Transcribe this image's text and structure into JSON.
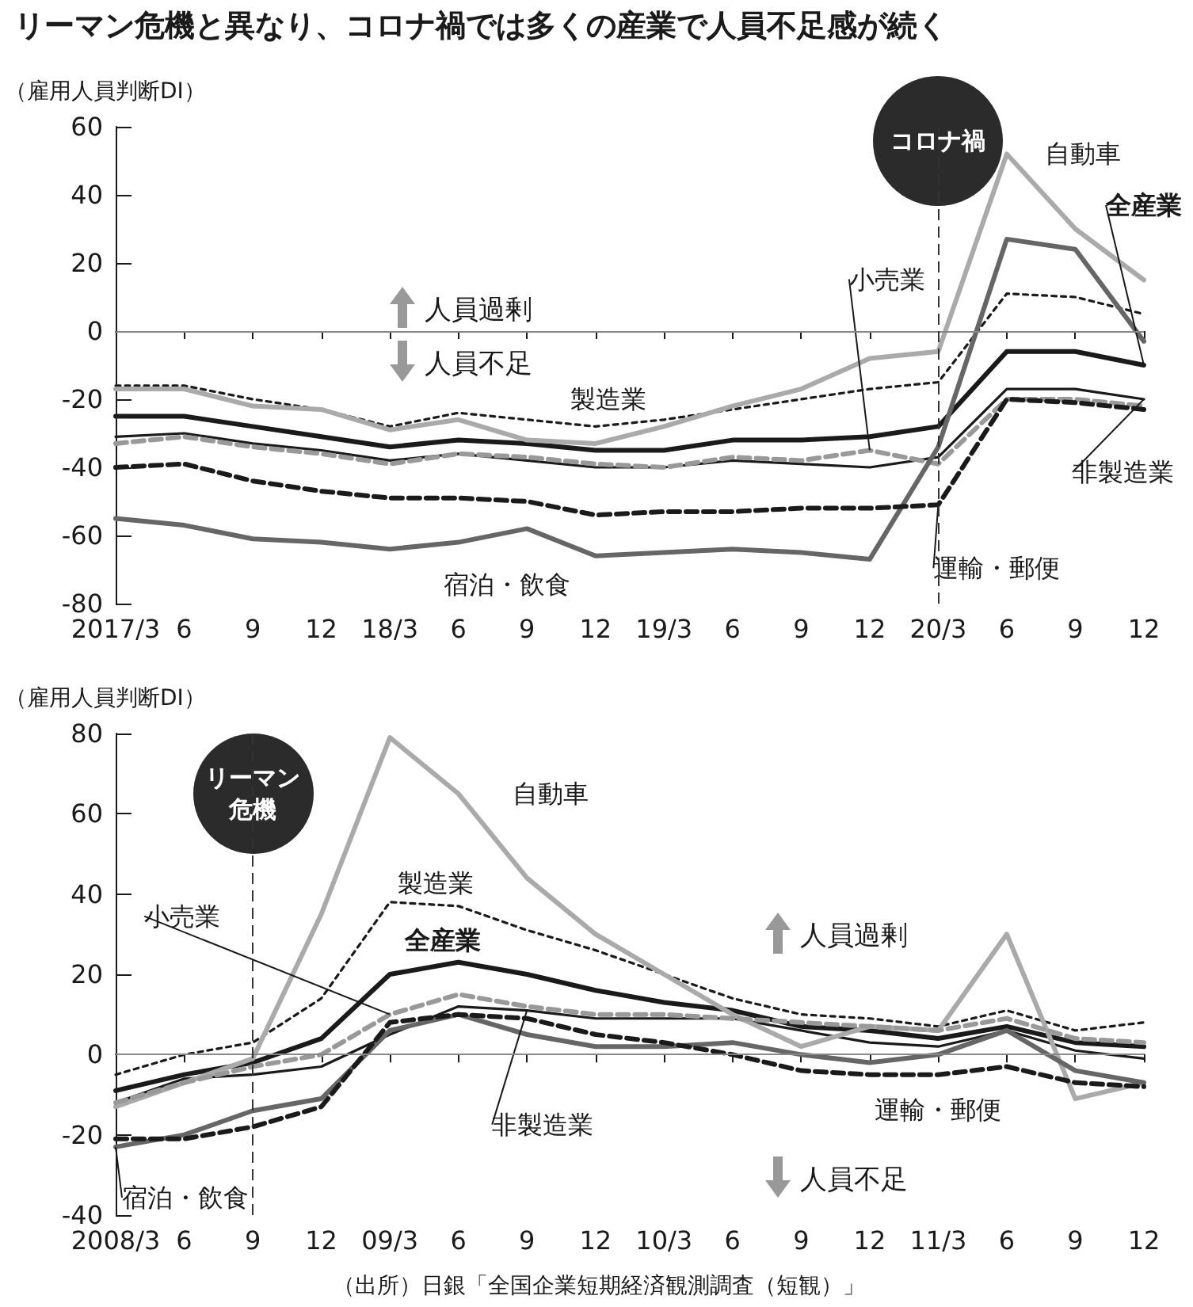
{
  "chart_data": [
    {
      "type": "line",
      "title": "リーマン危機と異なり、コロナ禍では多くの産業で人員不足感が続く",
      "ylabel": "（雇用人員判断DI）",
      "categories": [
        "2017/3",
        "6",
        "9",
        "12",
        "18/3",
        "6",
        "9",
        "12",
        "19/3",
        "6",
        "9",
        "12",
        "20/3",
        "6",
        "9",
        "12"
      ],
      "series": [
        {
          "name": "全産業",
          "color": "#1a1a1a",
          "line_style": "solid",
          "values": [
            -25,
            -25,
            -28,
            -31,
            -34,
            -32,
            -33,
            -35,
            -35,
            -32,
            -32,
            -31,
            -28,
            -6,
            -6,
            -10
          ]
        },
        {
          "name": "製造業",
          "color": "#1a1a1a",
          "line_style": "dotted",
          "values": [
            -16,
            -16,
            -20,
            -23,
            -28,
            -24,
            -26,
            -28,
            -26,
            -23,
            -20,
            -17,
            -15,
            11,
            10,
            5
          ]
        },
        {
          "name": "非製造業",
          "color": "#1a1a1a",
          "line_style": "solid",
          "values": [
            -31,
            -30,
            -33,
            -35,
            -38,
            -36,
            -38,
            -40,
            -40,
            -38,
            -39,
            -40,
            -37,
            -17,
            -17,
            -20
          ]
        },
        {
          "name": "自動車",
          "color": "#aaaaaa",
          "line_style": "solid",
          "values": [
            -17,
            -17,
            -22,
            -23,
            -29,
            -26,
            -32,
            -33,
            -28,
            -22,
            -17,
            -8,
            -6,
            52,
            30,
            15
          ]
        },
        {
          "name": "小売業",
          "color": "#999999",
          "line_style": "dashed",
          "values": [
            -33,
            -31,
            -34,
            -36,
            -39,
            -36,
            -37,
            -39,
            -40,
            -37,
            -38,
            -35,
            -39,
            -20,
            -20,
            -22
          ]
        },
        {
          "name": "宿泊・飲食",
          "color": "#666666",
          "line_style": "solid",
          "values": [
            -55,
            -57,
            -61,
            -62,
            -64,
            -62,
            -58,
            -66,
            -65,
            -64,
            -65,
            -67,
            -34,
            27,
            24,
            -3
          ]
        },
        {
          "name": "運輸・郵便",
          "color": "#1a1a1a",
          "line_style": "dashed",
          "values": [
            -40,
            -39,
            -44,
            -47,
            -49,
            -49,
            -50,
            -54,
            -53,
            -53,
            -52,
            -52,
            -51,
            -20,
            -21,
            -23
          ]
        }
      ],
      "ylim": [
        -80,
        60
      ],
      "yticks": [
        -80,
        -60,
        -40,
        -20,
        0,
        20,
        40,
        60
      ],
      "grid": false,
      "legend": false,
      "marker": "none",
      "ref_lines": [
        {
          "axis": "y",
          "value": 0,
          "label": null,
          "color": "#888888",
          "line_style": "solid"
        },
        {
          "axis": "x",
          "value": "20/3",
          "label": "コロナ禍",
          "color": "#333333",
          "line_style": "dashed"
        }
      ],
      "annotations": [
        "人員過剰",
        "人員不足"
      ]
    },
    {
      "type": "line",
      "ylabel": "（雇用人員判断DI）",
      "categories": [
        "2008/3",
        "6",
        "9",
        "12",
        "09/3",
        "6",
        "9",
        "12",
        "10/3",
        "6",
        "9",
        "12",
        "11/3",
        "6",
        "9",
        "12"
      ],
      "series": [
        {
          "name": "全産業",
          "color": "#1a1a1a",
          "line_style": "solid",
          "values": [
            -9,
            -5,
            -2,
            4,
            20,
            23,
            20,
            16,
            13,
            11,
            7,
            6,
            4,
            7,
            3,
            2
          ]
        },
        {
          "name": "製造業",
          "color": "#1a1a1a",
          "line_style": "dotted",
          "values": [
            -5,
            0,
            3,
            14,
            38,
            37,
            31,
            26,
            20,
            14,
            10,
            9,
            7,
            11,
            6,
            8
          ]
        },
        {
          "name": "非製造業",
          "color": "#1a1a1a",
          "line_style": "solid",
          "values": [
            -12,
            -6,
            -5,
            -3,
            5,
            12,
            11,
            9,
            9,
            9,
            6,
            3,
            2,
            6,
            1,
            -1
          ]
        },
        {
          "name": "自動車",
          "color": "#aaaaaa",
          "line_style": "solid",
          "values": [
            -13,
            -7,
            -1,
            35,
            79,
            65,
            44,
            30,
            20,
            10,
            2,
            7,
            6,
            30,
            -11,
            -7
          ]
        },
        {
          "name": "小売業",
          "color": "#999999",
          "line_style": "dashed",
          "values": [
            -12,
            -7,
            -3,
            0,
            10,
            15,
            12,
            10,
            10,
            9,
            8,
            7,
            6,
            9,
            4,
            3
          ]
        },
        {
          "name": "宿泊・飲食",
          "color": "#666666",
          "line_style": "solid",
          "values": [
            -23,
            -20,
            -14,
            -11,
            6,
            10,
            5,
            2,
            2,
            3,
            0,
            -2,
            0,
            6,
            -4,
            -7
          ]
        },
        {
          "name": "運輸・郵便",
          "color": "#1a1a1a",
          "line_style": "dashed",
          "values": [
            -21,
            -21,
            -18,
            -13,
            8,
            10,
            9,
            5,
            3,
            0,
            -4,
            -5,
            -5,
            -3,
            -7,
            -8
          ]
        }
      ],
      "ylim": [
        -40,
        80
      ],
      "yticks": [
        -40,
        -20,
        0,
        20,
        40,
        60,
        80
      ],
      "grid": false,
      "legend": false,
      "marker": "none",
      "ref_lines": [
        {
          "axis": "y",
          "value": 0,
          "label": null,
          "color": "#888888",
          "line_style": "solid"
        },
        {
          "axis": "x",
          "value": "9",
          "label": "リーマン危機",
          "color": "#333333",
          "line_style": "dashed"
        }
      ],
      "annotations": [
        "人員過剰",
        "人員不足",
        "（出所）日銀「全国企業短期経済観測調査（短観）」"
      ]
    }
  ]
}
